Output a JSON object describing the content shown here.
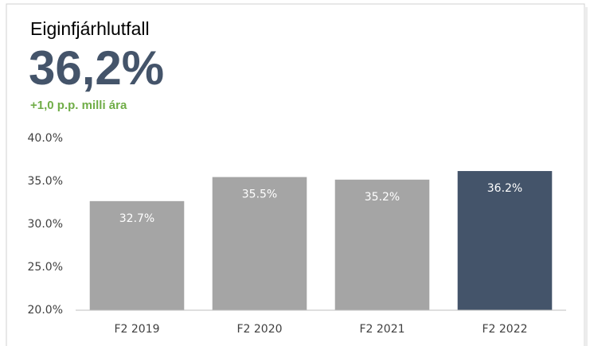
{
  "chart_data": {
    "type": "bar",
    "title": "Eiginfjárhlutfall",
    "kpi": "36,2%",
    "subtitle": "+1,0 p.p. milli ára",
    "categories": [
      "F2 2019",
      "F2 2020",
      "F2 2021",
      "F2 2022"
    ],
    "values": [
      32.7,
      35.5,
      35.2,
      36.2
    ],
    "value_labels": [
      "32.7%",
      "35.5%",
      "35.2%",
      "36.2%"
    ],
    "colors": [
      "#a5a5a5",
      "#a5a5a5",
      "#a5a5a5",
      "#44546a"
    ],
    "ylim": [
      20,
      40
    ],
    "yticks": [
      {
        "value": 20,
        "label": "20.0%"
      },
      {
        "value": 25,
        "label": "25.0%"
      },
      {
        "value": 30,
        "label": "30.0%"
      },
      {
        "value": 35,
        "label": "35.0%"
      },
      {
        "value": 40,
        "label": "40.0%"
      }
    ],
    "grid": false
  }
}
